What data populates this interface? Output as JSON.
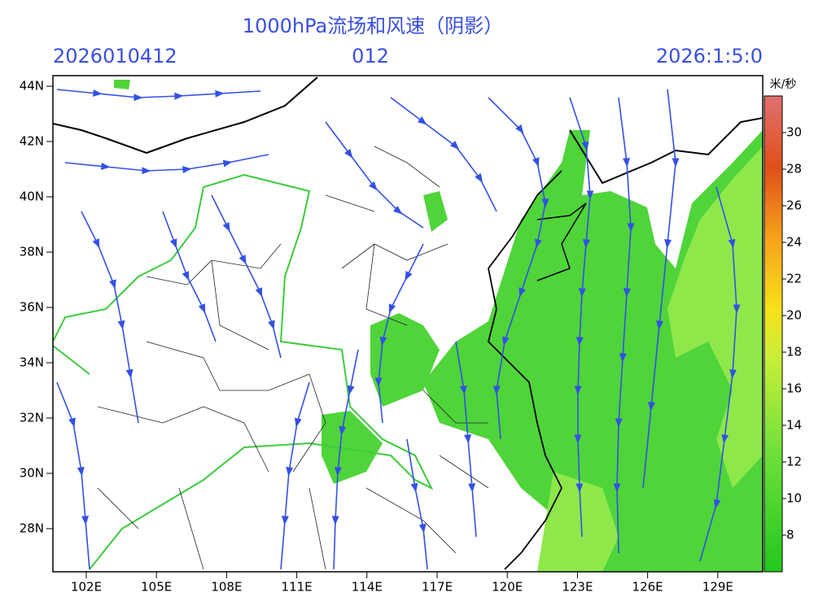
{
  "title": "1000hPa流场和风速（阴影）",
  "run_time": "2026010412",
  "forecast_hour": "012",
  "valid_time": "2026:1:5:0",
  "lat_labels": [
    "44N",
    "42N",
    "40N",
    "38N",
    "36N",
    "34N",
    "32N",
    "30N",
    "28N"
  ],
  "lon_labels": [
    "102E",
    "105E",
    "108E",
    "111E",
    "114E",
    "117E",
    "120E",
    "123E",
    "126E",
    "129E"
  ],
  "colorbar": {
    "unit": "米/秒",
    "labels": [
      30,
      28,
      26,
      24,
      22,
      20,
      18,
      16,
      14,
      12,
      10,
      8
    ]
  }
}
